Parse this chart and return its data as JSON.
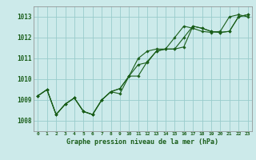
{
  "title": "Graphe pression niveau de la mer (hPa)",
  "background_color": "#cceaea",
  "grid_color": "#99cccc",
  "line_color": "#1a5e1a",
  "xlim": [
    -0.5,
    23.5
  ],
  "ylim": [
    1007.5,
    1013.5
  ],
  "yticks": [
    1008,
    1009,
    1010,
    1011,
    1012,
    1013
  ],
  "xtick_labels": [
    "0",
    "1",
    "2",
    "3",
    "4",
    "5",
    "6",
    "7",
    "8",
    "9",
    "10",
    "11",
    "12",
    "13",
    "14",
    "15",
    "16",
    "17",
    "18",
    "19",
    "20",
    "21",
    "22",
    "23"
  ],
  "series": [
    [
      1009.2,
      1009.5,
      1008.3,
      1008.8,
      1009.1,
      1008.45,
      1008.3,
      1009.0,
      1009.4,
      1009.55,
      1010.15,
      1011.0,
      1011.35,
      1011.45,
      1011.45,
      1012.0,
      1012.55,
      1012.45,
      1012.3,
      1012.25,
      1012.3,
      1013.0,
      1013.1,
      1013.0
    ],
    [
      1009.2,
      1009.5,
      1008.3,
      1008.8,
      1009.1,
      1008.45,
      1008.3,
      1009.0,
      1009.4,
      1009.55,
      1010.15,
      1010.7,
      1010.8,
      1011.35,
      1011.45,
      1011.45,
      1012.0,
      1012.55,
      1012.45,
      1012.3,
      1012.25,
      1012.3,
      1013.0,
      1013.1
    ],
    [
      1009.2,
      1009.5,
      1008.3,
      1008.8,
      1009.1,
      1008.45,
      1008.3,
      1009.0,
      1009.4,
      1009.3,
      1010.15,
      1010.15,
      1010.85,
      1011.35,
      1011.45,
      1011.45,
      1011.55,
      1012.55,
      1012.45,
      1012.3,
      1012.25,
      1012.3,
      1013.0,
      1013.1
    ]
  ]
}
